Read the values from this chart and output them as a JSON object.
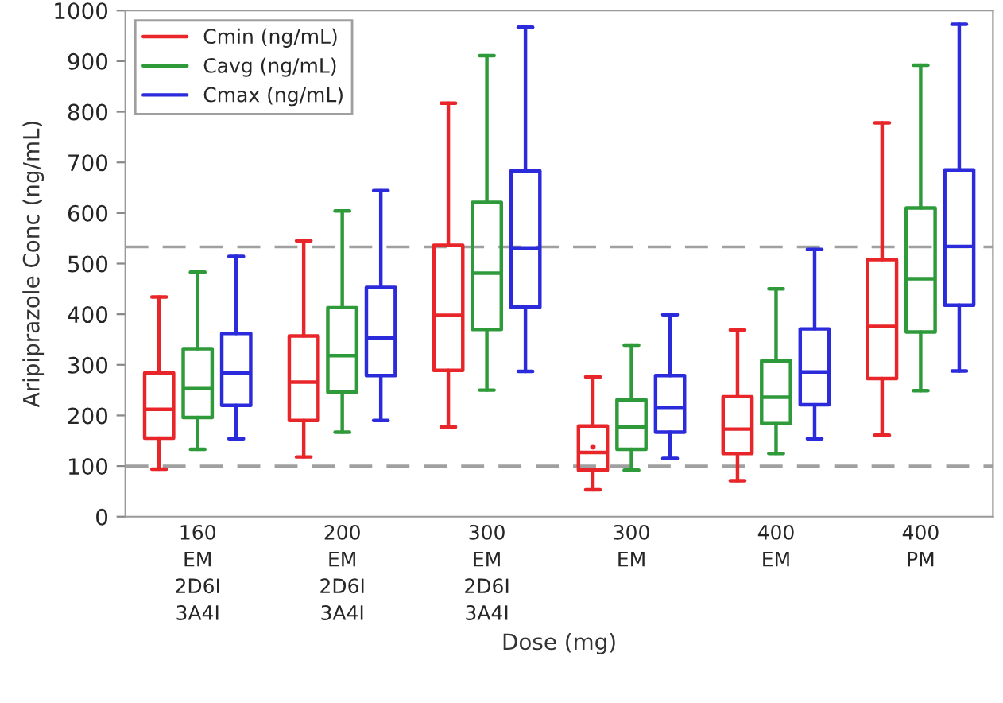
{
  "chart_data": {
    "type": "box",
    "xlabel": "Dose (mg)",
    "ylabel": "Aripiprazole Conc (ng/mL)",
    "categories": [
      "160\nEM\n2D6I\n3A4I",
      "200\nEM\n2D6I\n3A4I",
      "300\nEM\n2D6I\n3A4I",
      "300\nEM",
      "400\nEM",
      "400\nPM"
    ],
    "ylim": [
      0,
      1000
    ],
    "yticks": [
      0,
      100,
      200,
      300,
      400,
      500,
      600,
      700,
      800,
      900,
      1000
    ],
    "legend": "top left",
    "grid": false,
    "ref_lines": [
      {
        "axis": "y",
        "value": 100,
        "color": "#a0a0a0",
        "line_style": "dashed"
      },
      {
        "axis": "y",
        "value": 533,
        "color": "#a0a0a0",
        "line_style": "dashed"
      }
    ],
    "series": [
      {
        "name": "Cmin (ng/mL)",
        "color": "#e8262a",
        "boxes": [
          {
            "low": 94,
            "q1": 155,
            "median": 212,
            "q3": 284,
            "high": 434
          },
          {
            "low": 118,
            "q1": 190,
            "median": 266,
            "q3": 357,
            "high": 545
          },
          {
            "low": 177,
            "q1": 289,
            "median": 398,
            "q3": 536,
            "high": 817
          },
          {
            "low": 53,
            "q1": 92,
            "median": 127,
            "q3": 179,
            "high": 276,
            "outliers": [
              138
            ]
          },
          {
            "low": 71,
            "q1": 125,
            "median": 173,
            "q3": 237,
            "high": 369
          },
          {
            "low": 161,
            "q1": 273,
            "median": 376,
            "q3": 508,
            "high": 778
          }
        ]
      },
      {
        "name": "Cavg (ng/mL)",
        "color": "#2e9a3a",
        "boxes": [
          {
            "low": 133,
            "q1": 196,
            "median": 253,
            "q3": 332,
            "high": 483
          },
          {
            "low": 167,
            "q1": 246,
            "median": 318,
            "q3": 413,
            "high": 604
          },
          {
            "low": 250,
            "q1": 370,
            "median": 481,
            "q3": 621,
            "high": 911
          },
          {
            "low": 92,
            "q1": 133,
            "median": 177,
            "q3": 231,
            "high": 339
          },
          {
            "low": 125,
            "q1": 184,
            "median": 236,
            "q3": 308,
            "high": 450
          },
          {
            "low": 249,
            "q1": 365,
            "median": 470,
            "q3": 610,
            "high": 892
          }
        ]
      },
      {
        "name": "Cmax (ng/mL)",
        "color": "#2b2bdc",
        "boxes": [
          {
            "low": 154,
            "q1": 220,
            "median": 284,
            "q3": 362,
            "high": 514
          },
          {
            "low": 190,
            "q1": 279,
            "median": 353,
            "q3": 453,
            "high": 644
          },
          {
            "low": 287,
            "q1": 414,
            "median": 531,
            "q3": 683,
            "high": 967
          },
          {
            "low": 115,
            "q1": 167,
            "median": 216,
            "q3": 279,
            "high": 399
          },
          {
            "low": 154,
            "q1": 221,
            "median": 286,
            "q3": 371,
            "high": 528
          },
          {
            "low": 288,
            "q1": 418,
            "median": 534,
            "q3": 685,
            "high": 973
          }
        ]
      }
    ]
  }
}
